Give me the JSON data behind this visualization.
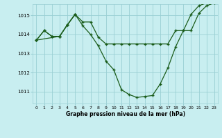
{
  "title": "Graphe pression niveau de la mer (hPa)",
  "bg_color": "#c8eef0",
  "grid_color": "#9acfd4",
  "line_color": "#1a5c1a",
  "xlim": [
    -0.5,
    23.5
  ],
  "ylim": [
    1010.4,
    1015.6
  ],
  "yticks": [
    1011,
    1012,
    1013,
    1014,
    1015
  ],
  "xticks": [
    0,
    1,
    2,
    3,
    4,
    5,
    6,
    7,
    8,
    9,
    10,
    11,
    12,
    13,
    14,
    15,
    16,
    17,
    18,
    19,
    20,
    21,
    22,
    23
  ],
  "series1": [
    1013.7,
    1014.2,
    1013.9,
    1013.9,
    1014.5,
    1015.05,
    1014.65,
    1014.65,
    1013.85,
    1013.5,
    1013.5,
    1013.5,
    1013.5,
    1013.5,
    1013.5,
    1013.5,
    1013.5,
    1013.5,
    1014.2,
    1014.2,
    1014.2,
    1015.1,
    1015.5,
    1015.65
  ],
  "series2": [
    1013.7,
    1014.2,
    1013.9,
    1013.9,
    1014.5,
    1015.05,
    1014.45,
    1014.0,
    1013.4,
    1012.6,
    1012.15,
    1011.1,
    1010.85,
    1010.7,
    1010.75,
    1010.8,
    1011.4,
    1012.25,
    1013.35,
    1014.2,
    1015.05,
    1015.5,
    1015.65,
    null
  ],
  "series3_x": [
    0,
    3,
    4,
    5
  ],
  "series3_y": [
    1013.7,
    1013.9,
    1014.5,
    1015.05
  ]
}
